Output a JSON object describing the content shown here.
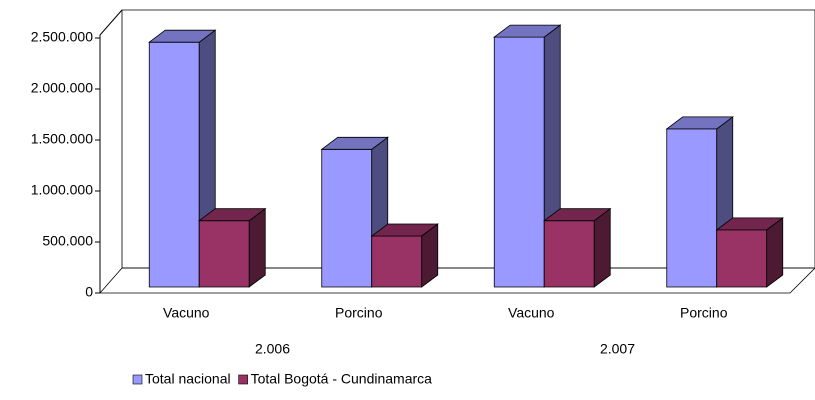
{
  "chart_data": {
    "type": "bar3d",
    "categories": [
      "Vacuno",
      "Porcino",
      "Vacuno",
      "Porcino"
    ],
    "groups": [
      "2.006",
      "2.007"
    ],
    "series": [
      {
        "name": "Total nacional",
        "color": "#9999ff",
        "values": [
          2400000,
          1350000,
          2450000,
          1550000
        ]
      },
      {
        "name": "Total Bogotá - Cundinamarca",
        "color": "#993366",
        "values": [
          650000,
          500000,
          650000,
          560000
        ]
      }
    ],
    "ylim": [
      0,
      2500000
    ],
    "yticks": [
      0,
      {
        "value": 500000,
        "label": "500.000"
      },
      {
        "value": 1000000,
        "label": "1.000.000"
      },
      {
        "value": 1500000,
        "label": "1.500.000"
      },
      {
        "value": 2000000,
        "label": "2.000.000"
      },
      {
        "value": 2500000,
        "label": "2.500.000"
      }
    ],
    "grid": false,
    "legend": "bottom"
  }
}
